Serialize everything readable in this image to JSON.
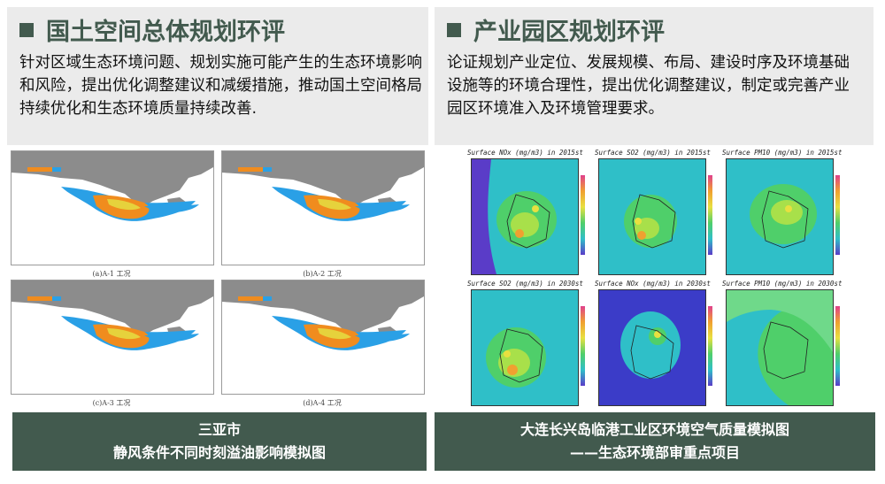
{
  "left_panel": {
    "title": "国土空间总体规划环评",
    "body": "针对区域生态环境问题、规划实施可能产生的生态环境影响和风险，提出优化调整建议和减缓措施，推动国土空间格局持续优化和生态环境质量持续改善.",
    "maps": [
      {
        "caption": "(a)A-1 工况"
      },
      {
        "caption": "(b)A-2 工况"
      },
      {
        "caption": "(c)A-3 工况"
      },
      {
        "caption": "(d)A-4 工况"
      }
    ],
    "footer": {
      "line1": "三亚市",
      "line2": "静风条件不同时刻溢油影响模拟图"
    }
  },
  "right_panel": {
    "title": "产业园区规划环评",
    "body": "论证规划产业定位、发展规模、布局、建设时序及环境基础设施等的环境合理性，提出优化调整建议，制定或完善产业园区环境准入及环境管理要求。",
    "plots": [
      {
        "title": "Surface NOx (mg/m3) in 2015st"
      },
      {
        "title": "Surface SO2 (mg/m3) in 2015st"
      },
      {
        "title": "Surface PM10 (mg/m3) in 2015st"
      },
      {
        "title": "Surface SO2 (mg/m3) in 2030st"
      },
      {
        "title": "Surface NOx (mg/m3) in 2030st"
      },
      {
        "title": "Surface PM10 (mg/m3) in 2030st"
      }
    ],
    "footer": {
      "line1": "大连长兴岛临港工业区环境空气质量模拟图",
      "line2": "——生态环境部审重点项目"
    }
  },
  "colors": {
    "header_bg": "#ebebeb",
    "title_green": "#425a4e",
    "footer_bg": "#425a4e",
    "land_gray": "#8c8c8c",
    "oil_blue": "#2aa0e6",
    "oil_orange": "#f08c1e",
    "field_cyan": "#2fbfc8",
    "field_purple": "#5a3cc8"
  }
}
